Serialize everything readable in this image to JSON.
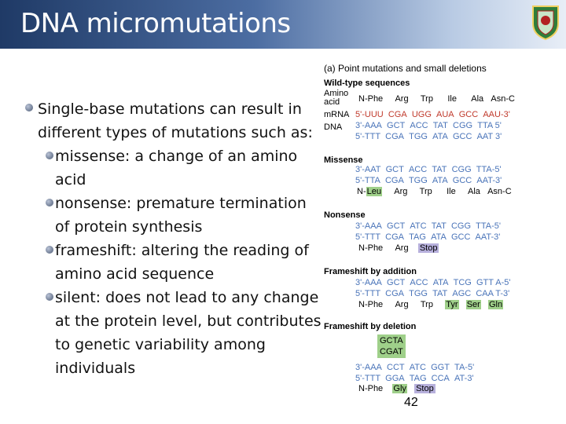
{
  "slide": {
    "title": "DNA micromutations",
    "page_number": "42"
  },
  "bullets": [
    {
      "level": 1,
      "text": "Single-base mutations can result in different types of mutations such as:"
    },
    {
      "level": 2,
      "text": "missense: a change of an amino acid"
    },
    {
      "level": 2,
      "text": "nonsense: premature termination of protein synthesis"
    },
    {
      "level": 2,
      "text": "frameshift: altering the reading of amino acid sequence"
    },
    {
      "level": 2,
      "text": "silent: does not lead to any change at the protein level, but contributes to genetic variability among individuals"
    }
  ],
  "figure": {
    "caption": "(a) Point mutations and small deletions",
    "wild_type": {
      "heading": "Wild-type sequences",
      "amino_label": "Amino acid",
      "amino": [
        "N-Phe",
        "Arg",
        "Trp",
        "Ile",
        "Ala",
        "Asn-C"
      ],
      "mrna_label": "mRNA",
      "mrna": [
        "5'-UUU",
        "CGA",
        "UGG",
        "AUA",
        "GCC",
        "AAU-3'"
      ],
      "dna_label": "DNA",
      "dna_top": [
        "3'-AAA",
        "GCT",
        "ACC",
        "TAT",
        "CGG",
        "TTA 5'"
      ],
      "dna_bottom": [
        "5'-TTT",
        "CGA",
        "TGG",
        "ATA",
        "GCC",
        "AAT 3'"
      ]
    },
    "missense": {
      "heading": "Missense",
      "top": [
        "3'-AAT",
        "GCT",
        "ACC",
        "TAT",
        "CGG",
        "TTA-5'"
      ],
      "bottom": [
        "5'-TTA",
        "CGA",
        "TGG",
        "ATA",
        "GCC",
        "AAT-3'"
      ],
      "amino": [
        "N-",
        "Leu",
        "Arg",
        "Trp",
        "Ile",
        "Ala",
        "Asn-C"
      ]
    },
    "nonsense": {
      "heading": "Nonsense",
      "top": [
        "3'-AAA",
        "GCT",
        "ATC",
        "TAT",
        "CGG",
        "TTA-5'"
      ],
      "bottom": [
        "5'-TTT",
        "CGA",
        "TAG",
        "ATA",
        "GCC",
        "AAT-3'"
      ],
      "amino": [
        "N-Phe",
        "Arg",
        "Stop"
      ]
    },
    "addition": {
      "heading": "Frameshift by addition",
      "top": [
        "3'-AAA",
        "GCT",
        "ACC",
        "ATA",
        "TCG",
        "GTT A-5'"
      ],
      "bottom": [
        "5'-TTT",
        "CGA",
        "TGG",
        "TAT",
        "AGC",
        "CAA T-3'"
      ],
      "amino": [
        "N-Phe",
        "Arg",
        "Trp",
        "Tyr",
        "Ser",
        "Gln"
      ]
    },
    "deletion": {
      "heading": "Frameshift by deletion",
      "deleted_top": "GCTA",
      "deleted_bottom": "CGAT",
      "top": [
        "3'-AAA",
        "CCT",
        "ATC",
        "GGT",
        "TA-5'"
      ],
      "bottom": [
        "5'-TTT",
        "GGA",
        "TAG",
        "CCA",
        "AT-3'"
      ],
      "amino": [
        "N-Phe",
        "Gly",
        "Stop"
      ]
    },
    "colors": {
      "highlight_green": "#9fd08a",
      "highlight_purple": "#b7b0dc",
      "blue_seq": "#4a74b9"
    }
  }
}
